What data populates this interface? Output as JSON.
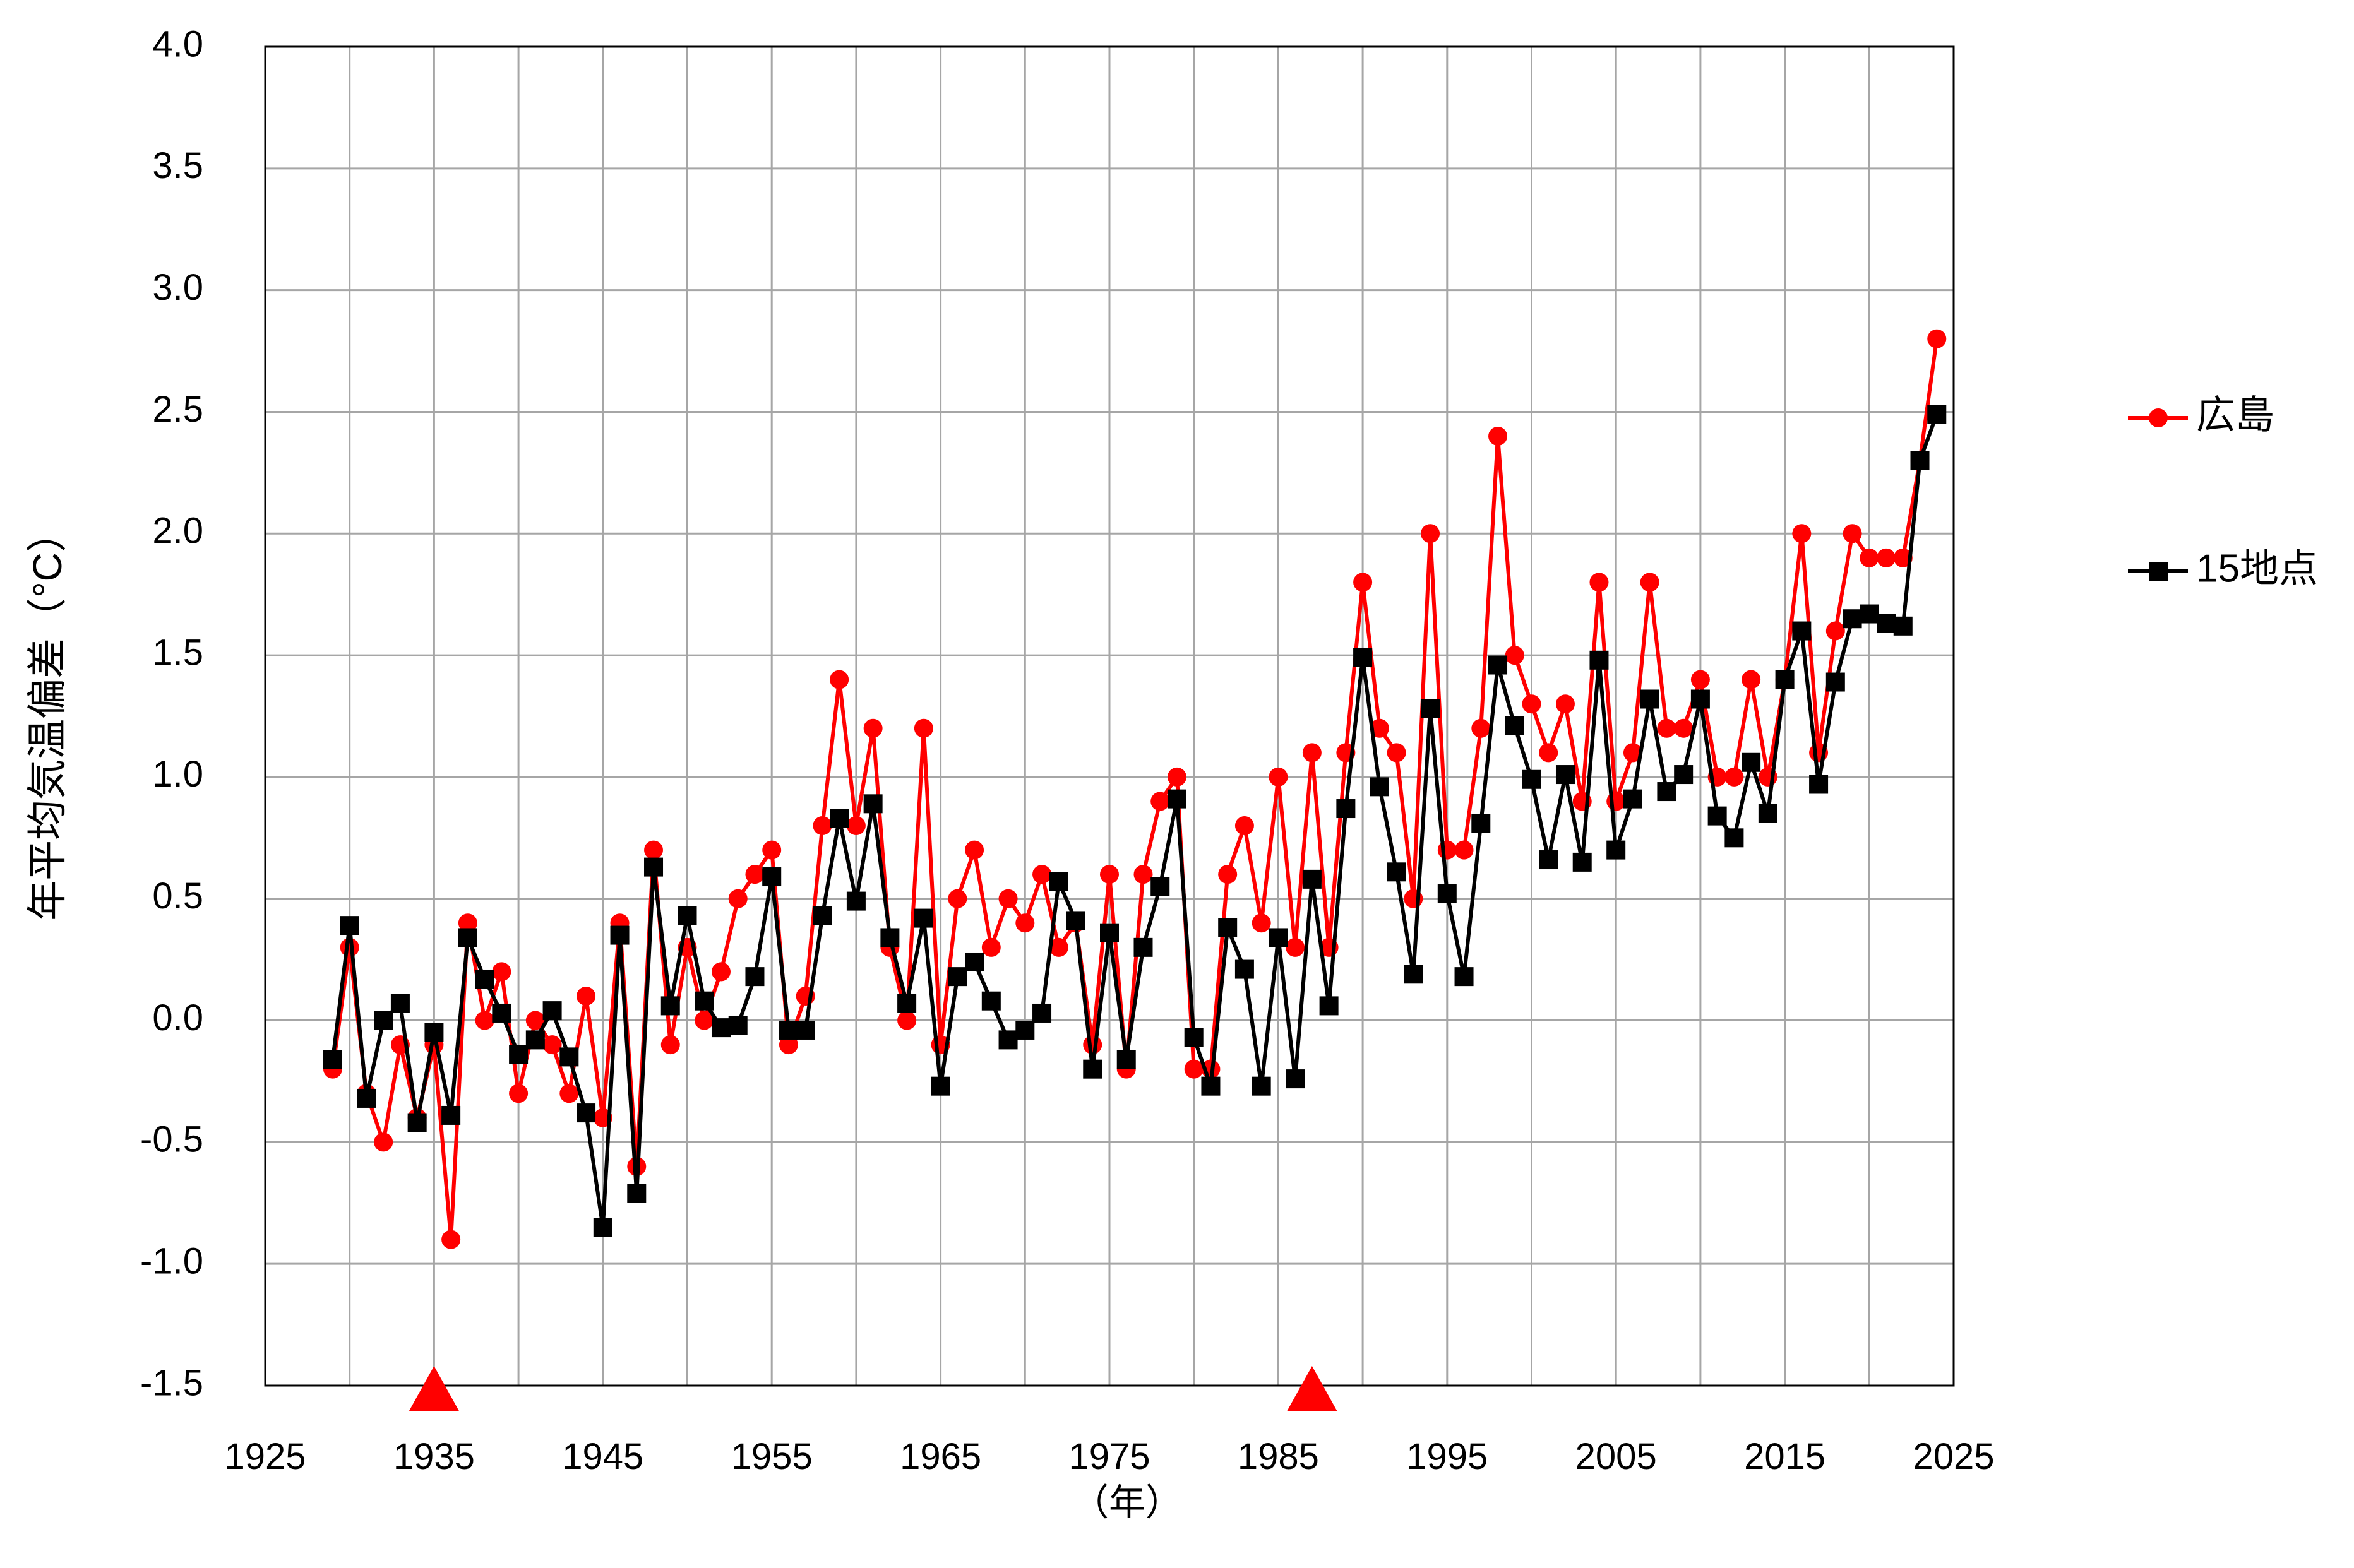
{
  "chart_data": {
    "type": "line",
    "title": "",
    "xlabel": "（年）",
    "ylabel": "年平均気温偏差（°C）",
    "xlim": [
      1925,
      2025
    ],
    "ylim": [
      -1.5,
      4.0
    ],
    "x_ticks": [
      "1925",
      "1935",
      "1945",
      "1955",
      "1965",
      "1975",
      "1985",
      "1995",
      "2005",
      "2015",
      "2025"
    ],
    "y_ticks": [
      "4.0",
      "3.5",
      "3.0",
      "2.5",
      "2.0",
      "1.5",
      "1.0",
      "0.5",
      "0.0",
      "-0.5",
      "-1.0",
      "-1.5"
    ],
    "grid": true,
    "legend_position": "right",
    "x": [
      1929,
      1930,
      1931,
      1932,
      1933,
      1934,
      1935,
      1936,
      1937,
      1938,
      1939,
      1940,
      1941,
      1942,
      1943,
      1944,
      1945,
      1946,
      1947,
      1948,
      1949,
      1950,
      1951,
      1952,
      1953,
      1954,
      1955,
      1956,
      1957,
      1958,
      1959,
      1960,
      1961,
      1962,
      1963,
      1964,
      1965,
      1966,
      1967,
      1968,
      1969,
      1970,
      1971,
      1972,
      1973,
      1974,
      1975,
      1976,
      1977,
      1978,
      1979,
      1980,
      1981,
      1982,
      1983,
      1984,
      1985,
      1986,
      1987,
      1988,
      1989,
      1990,
      1991,
      1992,
      1993,
      1994,
      1995,
      1996,
      1997,
      1998,
      1999,
      2000,
      2001,
      2002,
      2003,
      2004,
      2005,
      2006,
      2007,
      2008,
      2009,
      2010,
      2011,
      2012,
      2013,
      2014,
      2015,
      2016,
      2017,
      2018,
      2019,
      2020,
      2021,
      2022,
      2023,
      2024
    ],
    "series": [
      {
        "name": "広島",
        "color": "#ff0000",
        "marker": "circle",
        "values": [
          -0.2,
          0.3,
          -0.3,
          -0.5,
          -0.1,
          -0.4,
          -0.1,
          -0.9,
          0.4,
          0.0,
          0.2,
          -0.3,
          0.0,
          -0.1,
          -0.3,
          0.1,
          -0.4,
          0.4,
          -0.6,
          0.7,
          -0.1,
          0.3,
          0.0,
          0.2,
          0.5,
          0.6,
          0.7,
          -0.1,
          0.1,
          0.8,
          1.4,
          0.8,
          1.2,
          0.3,
          0.0,
          1.2,
          -0.1,
          0.5,
          0.7,
          0.3,
          0.5,
          0.4,
          0.6,
          0.3,
          0.4,
          -0.1,
          0.6,
          -0.2,
          0.6,
          0.9,
          1.0,
          -0.2,
          -0.2,
          0.6,
          0.8,
          0.4,
          1.0,
          0.3,
          1.1,
          0.3,
          1.1,
          1.8,
          1.2,
          1.1,
          0.5,
          2.0,
          0.7,
          0.7,
          1.2,
          2.4,
          1.5,
          1.3,
          1.1,
          1.3,
          0.9,
          1.8,
          0.9,
          1.1,
          1.8,
          1.2,
          1.2,
          1.4,
          1.0,
          1.0,
          1.4,
          1.0,
          1.4,
          2.0,
          1.1,
          1.6,
          2.0,
          1.9,
          1.9,
          1.9,
          2.3,
          2.8
        ]
      },
      {
        "name": "15地点",
        "color": "#000000",
        "marker": "square",
        "values": [
          -0.16,
          0.39,
          -0.32,
          0.0,
          0.07,
          -0.42,
          -0.05,
          -0.39,
          0.34,
          0.17,
          0.03,
          -0.14,
          -0.08,
          0.04,
          -0.15,
          -0.38,
          -0.85,
          0.35,
          -0.71,
          0.63,
          0.06,
          0.43,
          0.08,
          -0.03,
          -0.02,
          0.18,
          0.59,
          -0.04,
          -0.04,
          0.43,
          0.83,
          0.49,
          0.89,
          0.34,
          0.07,
          0.42,
          -0.27,
          0.18,
          0.24,
          0.08,
          -0.08,
          -0.04,
          0.03,
          0.57,
          0.41,
          -0.2,
          0.36,
          -0.16,
          0.3,
          0.55,
          0.91,
          -0.07,
          -0.27,
          0.38,
          0.21,
          -0.27,
          0.34,
          -0.24,
          0.58,
          0.06,
          0.87,
          1.49,
          0.96,
          0.61,
          0.19,
          1.28,
          0.52,
          0.18,
          0.81,
          1.46,
          1.21,
          0.99,
          0.66,
          1.01,
          0.65,
          1.48,
          0.7,
          0.91,
          1.32,
          0.94,
          1.01,
          1.32,
          0.84,
          0.75,
          1.06,
          0.85,
          1.4,
          1.6,
          0.97,
          1.39,
          1.65,
          1.67,
          1.63,
          1.62,
          2.3,
          2.49
        ]
      }
    ],
    "annotations": [
      {
        "type": "triangle-marker",
        "x": 1935,
        "color": "#ff0000"
      },
      {
        "type": "triangle-marker",
        "x": 1987,
        "color": "#ff0000"
      }
    ]
  }
}
